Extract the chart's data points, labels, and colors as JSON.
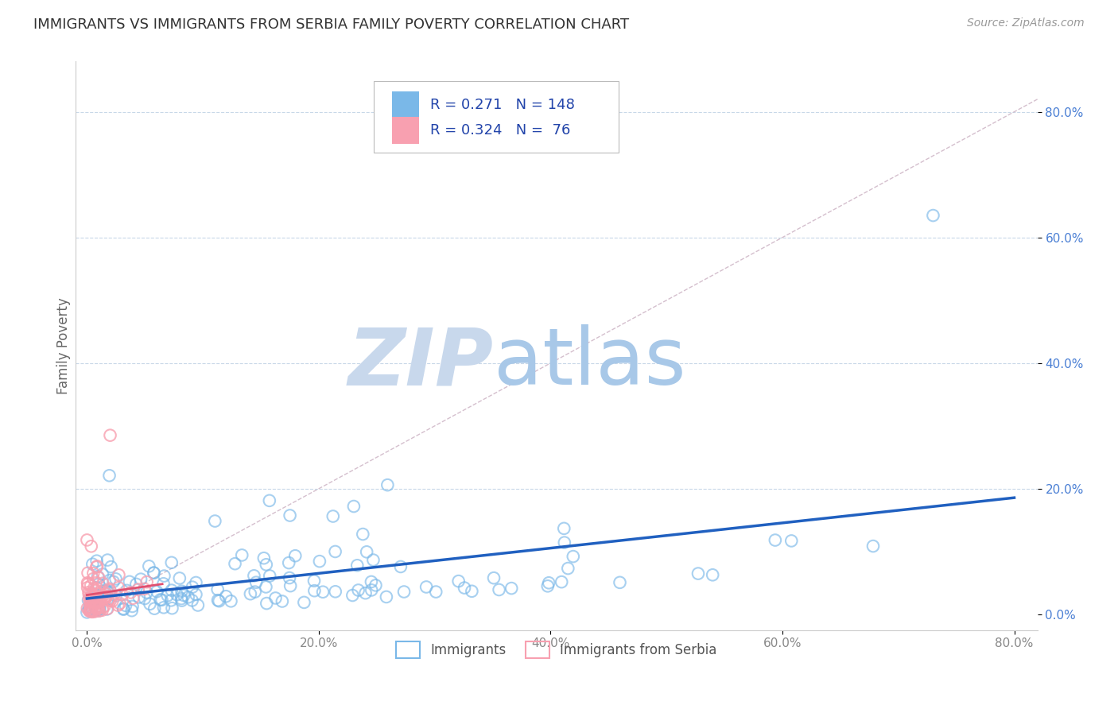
{
  "title": "IMMIGRANTS VS IMMIGRANTS FROM SERBIA FAMILY POVERTY CORRELATION CHART",
  "source": "Source: ZipAtlas.com",
  "xlabel": "",
  "ylabel": "Family Poverty",
  "xlim": [
    -0.01,
    0.82
  ],
  "ylim": [
    -0.025,
    0.88
  ],
  "x_ticks": [
    0.0,
    0.2,
    0.4,
    0.6,
    0.8
  ],
  "x_tick_labels": [
    "0.0%",
    "20.0%",
    "40.0%",
    "60.0%",
    "80.0%"
  ],
  "y_ticks": [
    0.0,
    0.2,
    0.4,
    0.6,
    0.8
  ],
  "y_tick_labels": [
    "0.0%",
    "20.0%",
    "40.0%",
    "60.0%",
    "80.0%"
  ],
  "legend_r1": "0.271",
  "legend_n1": "148",
  "legend_r2": "0.324",
  "legend_n2": "76",
  "color_immigrants": "#7ab8e8",
  "color_serbia": "#f8a0b0",
  "color_line_immigrants": "#2060c0",
  "color_line_serbia": "#e05070",
  "watermark_zip": "ZIP",
  "watermark_atlas": "atlas",
  "watermark_color_zip": "#c8d8ec",
  "watermark_color_atlas": "#a8c8e8",
  "background_color": "#ffffff",
  "grid_color": "#c8d8e8",
  "diag_color": "#d0b8c8",
  "title_fontsize": 13,
  "tick_color_y": "#4a7fd4",
  "tick_color_x": "#888888",
  "seed": 99
}
